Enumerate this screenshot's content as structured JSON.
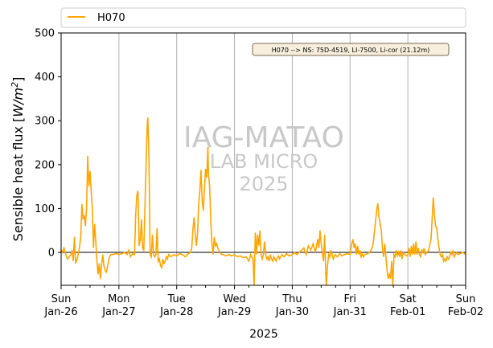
{
  "chart_data": {
    "type": "line",
    "ylabel": "Sensible heat flux [W/m²]",
    "ylabel_parts": {
      "prefix": "Sensible heat flux [",
      "var": "W/m",
      "sup": "2",
      "suffix": "]"
    },
    "xlabel": "2025",
    "ylim": [
      -75,
      500
    ],
    "yticks": [
      0,
      100,
      200,
      300,
      400,
      500
    ],
    "grid": "vertical at day boundaries",
    "legend": {
      "placement": "above plot, left",
      "entries": [
        {
          "label": "H070",
          "color": "#ffa500"
        }
      ]
    },
    "annotation": "H070 --> NS: 75D-4519, LI-7500, Li-cor (21.12m)",
    "watermark": {
      "line1": "IAG-MATAO",
      "line2": "LAB MICRO",
      "line3": "2025"
    },
    "xticks": [
      {
        "day": 0,
        "top": "Sun",
        "bottom": "Jan-26"
      },
      {
        "day": 1,
        "top": "Mon",
        "bottom": "Jan-27"
      },
      {
        "day": 2,
        "top": "Tue",
        "bottom": "Jan-28"
      },
      {
        "day": 3,
        "top": "Wed",
        "bottom": "Jan-29"
      },
      {
        "day": 4,
        "top": "Thu",
        "bottom": "Jan-30"
      },
      {
        "day": 5,
        "top": "Fri",
        "bottom": "Jan-31"
      },
      {
        "day": 6,
        "top": "Sat",
        "bottom": "Feb-01"
      },
      {
        "day": 7,
        "top": "Sun",
        "bottom": "Feb-02"
      }
    ],
    "series": [
      {
        "name": "H070",
        "color": "#ffa500",
        "points": [
          [
            0.0,
            5
          ],
          [
            0.02,
            0
          ],
          [
            0.05,
            10
          ],
          [
            0.08,
            -5
          ],
          [
            0.11,
            -15
          ],
          [
            0.14,
            -10
          ],
          [
            0.17,
            -5
          ],
          [
            0.19,
            5
          ],
          [
            0.21,
            -20
          ],
          [
            0.23,
            35
          ],
          [
            0.25,
            -25
          ],
          [
            0.28,
            -15
          ],
          [
            0.31,
            5
          ],
          [
            0.34,
            35
          ],
          [
            0.36,
            110
          ],
          [
            0.38,
            75
          ],
          [
            0.4,
            85
          ],
          [
            0.42,
            60
          ],
          [
            0.44,
            100
          ],
          [
            0.46,
            220
          ],
          [
            0.48,
            150
          ],
          [
            0.5,
            185
          ],
          [
            0.52,
            140
          ],
          [
            0.54,
            100
          ],
          [
            0.56,
            10
          ],
          [
            0.58,
            65
          ],
          [
            0.6,
            25
          ],
          [
            0.62,
            -20
          ],
          [
            0.64,
            -50
          ],
          [
            0.66,
            -25
          ],
          [
            0.68,
            -60
          ],
          [
            0.7,
            -30
          ],
          [
            0.72,
            -5
          ],
          [
            0.74,
            -30
          ],
          [
            0.76,
            -40
          ],
          [
            0.78,
            -45
          ],
          [
            0.8,
            -35
          ],
          [
            0.82,
            -20
          ],
          [
            0.84,
            -10
          ],
          [
            0.86,
            -5
          ],
          [
            0.9,
            -5
          ],
          [
            0.95,
            -2
          ],
          [
            1.0,
            -5
          ],
          [
            1.05,
            -3
          ],
          [
            1.1,
            0
          ],
          [
            1.14,
            -5
          ],
          [
            1.17,
            5
          ],
          [
            1.2,
            -10
          ],
          [
            1.24,
            -3
          ],
          [
            1.27,
            -5
          ],
          [
            1.29,
            85
          ],
          [
            1.31,
            130
          ],
          [
            1.33,
            140
          ],
          [
            1.35,
            15
          ],
          [
            1.37,
            30
          ],
          [
            1.39,
            75
          ],
          [
            1.41,
            10
          ],
          [
            1.43,
            5
          ],
          [
            1.45,
            100
          ],
          [
            1.47,
            200
          ],
          [
            1.49,
            290
          ],
          [
            1.5,
            307
          ],
          [
            1.52,
            220
          ],
          [
            1.54,
            -5
          ],
          [
            1.56,
            -10
          ],
          [
            1.58,
            40
          ],
          [
            1.6,
            -5
          ],
          [
            1.62,
            -10
          ],
          [
            1.64,
            -5
          ],
          [
            1.66,
            55
          ],
          [
            1.68,
            -20
          ],
          [
            1.7,
            -15
          ],
          [
            1.72,
            -30
          ],
          [
            1.74,
            -35
          ],
          [
            1.76,
            -15
          ],
          [
            1.78,
            -25
          ],
          [
            1.8,
            -20
          ],
          [
            1.82,
            -10
          ],
          [
            1.84,
            -15
          ],
          [
            1.86,
            -5
          ],
          [
            1.9,
            -10
          ],
          [
            1.95,
            -5
          ],
          [
            2.0,
            -8
          ],
          [
            2.05,
            -3
          ],
          [
            2.1,
            -5
          ],
          [
            2.15,
            -10
          ],
          [
            2.2,
            -3
          ],
          [
            2.24,
            0
          ],
          [
            2.26,
            10
          ],
          [
            2.28,
            50
          ],
          [
            2.3,
            80
          ],
          [
            2.32,
            45
          ],
          [
            2.34,
            15
          ],
          [
            2.36,
            40
          ],
          [
            2.38,
            110
          ],
          [
            2.4,
            140
          ],
          [
            2.42,
            188
          ],
          [
            2.44,
            120
          ],
          [
            2.46,
            95
          ],
          [
            2.48,
            145
          ],
          [
            2.5,
            190
          ],
          [
            2.52,
            170
          ],
          [
            2.54,
            240
          ],
          [
            2.55,
            180
          ],
          [
            2.57,
            150
          ],
          [
            2.59,
            70
          ],
          [
            2.61,
            20
          ],
          [
            2.63,
            -5
          ],
          [
            2.65,
            35
          ],
          [
            2.67,
            15
          ],
          [
            2.69,
            20
          ],
          [
            2.71,
            10
          ],
          [
            2.73,
            5
          ],
          [
            2.76,
            -3
          ],
          [
            2.8,
            -5
          ],
          [
            2.85,
            -8
          ],
          [
            2.9,
            -5
          ],
          [
            2.95,
            -8
          ],
          [
            3.0,
            -5
          ],
          [
            3.05,
            -10
          ],
          [
            3.1,
            -8
          ],
          [
            3.15,
            -12
          ],
          [
            3.2,
            -10
          ],
          [
            3.25,
            -20
          ],
          [
            3.28,
            -5
          ],
          [
            3.3,
            -10
          ],
          [
            3.32,
            -15
          ],
          [
            3.34,
            -75
          ],
          [
            3.36,
            45
          ],
          [
            3.38,
            -5
          ],
          [
            3.4,
            40
          ],
          [
            3.42,
            15
          ],
          [
            3.44,
            50
          ],
          [
            3.46,
            -5
          ],
          [
            3.48,
            -15
          ],
          [
            3.5,
            -5
          ],
          [
            3.52,
            25
          ],
          [
            3.54,
            -5
          ],
          [
            3.56,
            -15
          ],
          [
            3.58,
            -10
          ],
          [
            3.6,
            -20
          ],
          [
            3.62,
            -5
          ],
          [
            3.64,
            -15
          ],
          [
            3.66,
            -20
          ],
          [
            3.68,
            -10
          ],
          [
            3.7,
            -15
          ],
          [
            3.72,
            -20
          ],
          [
            3.74,
            -12
          ],
          [
            3.76,
            -8
          ],
          [
            3.78,
            -15
          ],
          [
            3.82,
            -5
          ],
          [
            3.86,
            -10
          ],
          [
            3.9,
            -3
          ],
          [
            3.95,
            -8
          ],
          [
            4.0,
            -5
          ],
          [
            4.04,
            0
          ],
          [
            4.08,
            -5
          ],
          [
            4.12,
            0
          ],
          [
            4.16,
            5
          ],
          [
            4.2,
            10
          ],
          [
            4.24,
            -5
          ],
          [
            4.28,
            15
          ],
          [
            4.32,
            5
          ],
          [
            4.36,
            20
          ],
          [
            4.4,
            0
          ],
          [
            4.44,
            30
          ],
          [
            4.46,
            10
          ],
          [
            4.48,
            50
          ],
          [
            4.5,
            20
          ],
          [
            4.52,
            0
          ],
          [
            4.54,
            -20
          ],
          [
            4.56,
            40
          ],
          [
            4.58,
            -50
          ],
          [
            4.59,
            -75
          ],
          [
            4.61,
            -30
          ],
          [
            4.63,
            -5
          ],
          [
            4.65,
            -10
          ],
          [
            4.67,
            5
          ],
          [
            4.69,
            -5
          ],
          [
            4.71,
            -15
          ],
          [
            4.74,
            -5
          ],
          [
            4.78,
            -10
          ],
          [
            4.82,
            -3
          ],
          [
            4.86,
            -8
          ],
          [
            4.9,
            -5
          ],
          [
            4.95,
            -3
          ],
          [
            5.0,
            -5
          ],
          [
            5.03,
            20
          ],
          [
            5.05,
            30
          ],
          [
            5.07,
            10
          ],
          [
            5.09,
            20
          ],
          [
            5.11,
            -5
          ],
          [
            5.13,
            15
          ],
          [
            5.15,
            -5
          ],
          [
            5.17,
            5
          ],
          [
            5.19,
            -10
          ],
          [
            5.21,
            -3
          ],
          [
            5.23,
            -10
          ],
          [
            5.26,
            -5
          ],
          [
            5.3,
            -3
          ],
          [
            5.34,
            0
          ],
          [
            5.38,
            10
          ],
          [
            5.4,
            20
          ],
          [
            5.42,
            45
          ],
          [
            5.44,
            70
          ],
          [
            5.46,
            95
          ],
          [
            5.48,
            112
          ],
          [
            5.5,
            80
          ],
          [
            5.52,
            65
          ],
          [
            5.54,
            50
          ],
          [
            5.56,
            10
          ],
          [
            5.58,
            -10
          ],
          [
            5.6,
            20
          ],
          [
            5.62,
            -10
          ],
          [
            5.64,
            -40
          ],
          [
            5.66,
            -60
          ],
          [
            5.68,
            -50
          ],
          [
            5.7,
            -60
          ],
          [
            5.72,
            -20
          ],
          [
            5.74,
            -75
          ],
          [
            5.76,
            -5
          ],
          [
            5.78,
            -10
          ],
          [
            5.8,
            5
          ],
          [
            5.82,
            -8
          ],
          [
            5.84,
            0
          ],
          [
            5.86,
            -10
          ],
          [
            5.88,
            5
          ],
          [
            5.9,
            -15
          ],
          [
            5.92,
            0
          ],
          [
            5.95,
            -5
          ],
          [
            5.98,
            -8
          ],
          [
            6.0,
            -5
          ],
          [
            6.02,
            10
          ],
          [
            6.04,
            -10
          ],
          [
            6.06,
            15
          ],
          [
            6.08,
            -5
          ],
          [
            6.1,
            20
          ],
          [
            6.12,
            -5
          ],
          [
            6.14,
            25
          ],
          [
            6.16,
            -5
          ],
          [
            6.18,
            10
          ],
          [
            6.2,
            -5
          ],
          [
            6.22,
            -10
          ],
          [
            6.24,
            5
          ],
          [
            6.26,
            0
          ],
          [
            6.28,
            10
          ],
          [
            6.3,
            -5
          ],
          [
            6.33,
            0
          ],
          [
            6.36,
            5
          ],
          [
            6.4,
            30
          ],
          [
            6.42,
            75
          ],
          [
            6.44,
            125
          ],
          [
            6.46,
            85
          ],
          [
            6.48,
            60
          ],
          [
            6.5,
            55
          ],
          [
            6.52,
            30
          ],
          [
            6.54,
            10
          ],
          [
            6.56,
            -5
          ],
          [
            6.58,
            -10
          ],
          [
            6.6,
            -5
          ],
          [
            6.62,
            -20
          ],
          [
            6.64,
            -15
          ],
          [
            6.66,
            -20
          ],
          [
            6.68,
            -10
          ],
          [
            6.7,
            -15
          ],
          [
            6.72,
            -10
          ],
          [
            6.74,
            0
          ],
          [
            6.76,
            -5
          ],
          [
            6.78,
            5
          ],
          [
            6.8,
            -10
          ],
          [
            6.82,
            -5
          ],
          [
            6.84,
            0
          ],
          [
            6.86,
            -5
          ],
          [
            6.9,
            -3
          ],
          [
            6.95,
            0
          ],
          [
            7.0,
            -5
          ]
        ]
      }
    ]
  }
}
